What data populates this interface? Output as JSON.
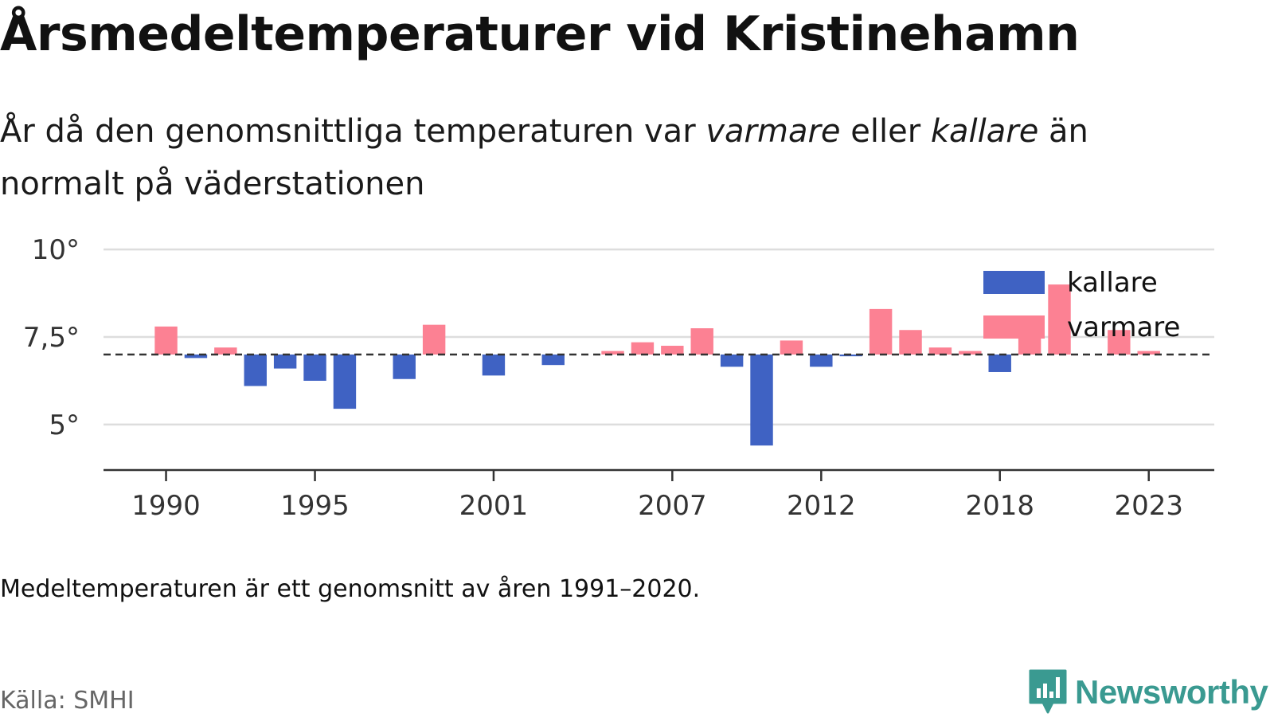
{
  "title": "Årsmedeltemperaturer vid Kristinehamn",
  "subtitle": {
    "part1": "År då den genomsnittliga temperaturen var ",
    "em1": "varmare",
    "part2": " eller ",
    "em2": "kallare",
    "part3": " än normalt på väderstationen"
  },
  "note": "Medeltemperaturen är ett genomsnitt av åren 1991–2020.",
  "source": "Källa: SMHI",
  "brand": "Newsworthy",
  "colors": {
    "warm": "#fc8193",
    "cold": "#3f62c3",
    "grid": "#dddddd",
    "axis": "#333333",
    "brand": "#3a9a91"
  },
  "chart_data": {
    "type": "bar",
    "title": "Årsmedeltemperaturer vid Kristinehamn",
    "xlabel": "",
    "ylabel": "",
    "ylim": [
      3.7,
      10.3
    ],
    "xlim": [
      1987.9,
      2025.2
    ],
    "baseline": 7.0,
    "baseline_style": "dashed",
    "y_ticks": [
      5,
      7.5,
      10
    ],
    "y_tick_labels": [
      "5°",
      "7,5°",
      "10°"
    ],
    "x_ticks": [
      1990,
      1995,
      2001,
      2007,
      2012,
      2018,
      2023
    ],
    "x_tick_labels": [
      "1990",
      "1995",
      "2001",
      "2007",
      "2012",
      "2018",
      "2023"
    ],
    "grid": true,
    "legend": {
      "position": "top-right",
      "entries": [
        {
          "label": "kallare",
          "color": "#3f62c3"
        },
        {
          "label": "varmare",
          "color": "#fc8193"
        }
      ]
    },
    "years": [
      1990,
      1991,
      1992,
      1993,
      1994,
      1995,
      1996,
      1997,
      1998,
      1999,
      2000,
      2001,
      2002,
      2003,
      2004,
      2005,
      2006,
      2007,
      2008,
      2009,
      2010,
      2011,
      2012,
      2013,
      2014,
      2015,
      2016,
      2017,
      2018,
      2019,
      2020,
      2021,
      2022,
      2023,
      2024
    ],
    "values": [
      7.8,
      6.9,
      7.2,
      6.1,
      6.6,
      6.25,
      5.45,
      null,
      6.3,
      7.85,
      null,
      6.4,
      null,
      6.7,
      null,
      7.1,
      7.35,
      7.25,
      7.75,
      6.65,
      4.4,
      7.4,
      6.65,
      6.95,
      8.3,
      7.7,
      7.2,
      7.1,
      6.5,
      7.5,
      9.0,
      null,
      7.7,
      7.1,
      null
    ]
  }
}
